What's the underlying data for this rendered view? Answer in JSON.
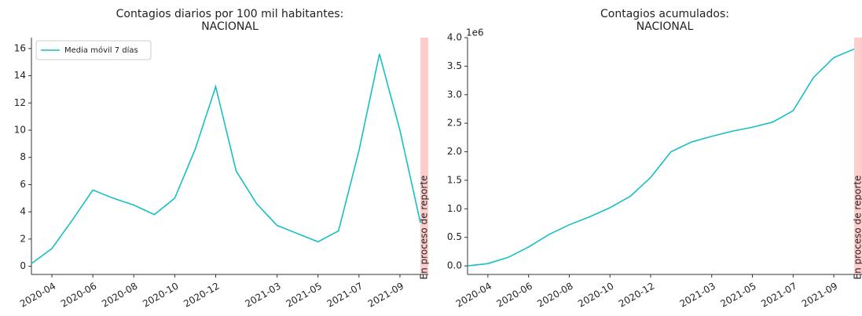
{
  "chart_data": [
    {
      "type": "line",
      "title": [
        "Contagios diarios por 100 mil habitantes:",
        "NACIONAL"
      ],
      "x": [
        "2020-03",
        "2020-04",
        "2020-05",
        "2020-06",
        "2020-07",
        "2020-08",
        "2020-09",
        "2020-10",
        "2020-11",
        "2020-12",
        "2021-01",
        "2021-02",
        "2021-03",
        "2021-04",
        "2021-05",
        "2021-06",
        "2021-07",
        "2021-08",
        "2021-09",
        "2021-10"
      ],
      "series": [
        {
          "name": "Media móvil 7 días",
          "color": "#17bfc4",
          "values": [
            0.2,
            1.3,
            3.4,
            5.6,
            5.0,
            4.5,
            3.8,
            5.0,
            8.6,
            13.2,
            7.0,
            4.6,
            3.0,
            2.4,
            1.8,
            2.6,
            8.5,
            15.6,
            10.0,
            3.2
          ]
        }
      ],
      "xlim": [
        "2020-03",
        "2021-10"
      ],
      "xticks": [
        "2020-04",
        "2020-06",
        "2020-08",
        "2020-10",
        "2020-12",
        "2021-03",
        "2021-05",
        "2021-07",
        "2021-09"
      ],
      "ylim": [
        -0.6,
        16.8
      ],
      "yticks": [
        0,
        2,
        4,
        6,
        8,
        10,
        12,
        14,
        16
      ],
      "legend": "upper left",
      "annotation": "En proceso de reporte",
      "band_color": "#ffcccc"
    },
    {
      "type": "line",
      "title": [
        "Contagios acumulados:",
        "NACIONAL"
      ],
      "x": [
        "2020-03",
        "2020-04",
        "2020-05",
        "2020-06",
        "2020-07",
        "2020-08",
        "2020-09",
        "2020-10",
        "2020-11",
        "2020-12",
        "2021-01",
        "2021-02",
        "2021-03",
        "2021-04",
        "2021-05",
        "2021-06",
        "2021-07",
        "2021-08",
        "2021-09",
        "2021-10"
      ],
      "series": [
        {
          "color": "#17bfc4",
          "values": [
            0.0,
            0.04,
            0.15,
            0.33,
            0.55,
            0.72,
            0.86,
            1.02,
            1.22,
            1.55,
            2.0,
            2.17,
            2.27,
            2.36,
            2.43,
            2.52,
            2.72,
            3.3,
            3.65,
            3.8
          ]
        }
      ],
      "xlim": [
        "2020-03",
        "2021-10"
      ],
      "xticks": [
        "2020-04",
        "2020-06",
        "2020-08",
        "2020-10",
        "2020-12",
        "2021-03",
        "2021-05",
        "2021-07",
        "2021-09"
      ],
      "ylim": [
        -0.15,
        4.0
      ],
      "yticks": [
        {
          "value": 0,
          "label": "0.0"
        },
        0.5,
        {
          "value": 1,
          "label": "1.0"
        },
        1.5,
        {
          "value": 2,
          "label": "2.0"
        },
        2.5,
        {
          "value": 3,
          "label": "3.0"
        },
        3.5,
        {
          "value": 4,
          "label": "4.0"
        }
      ],
      "y_offset_label": "1e6",
      "annotation": "En proceso de reporte",
      "band_color": "#ffcccc"
    }
  ]
}
